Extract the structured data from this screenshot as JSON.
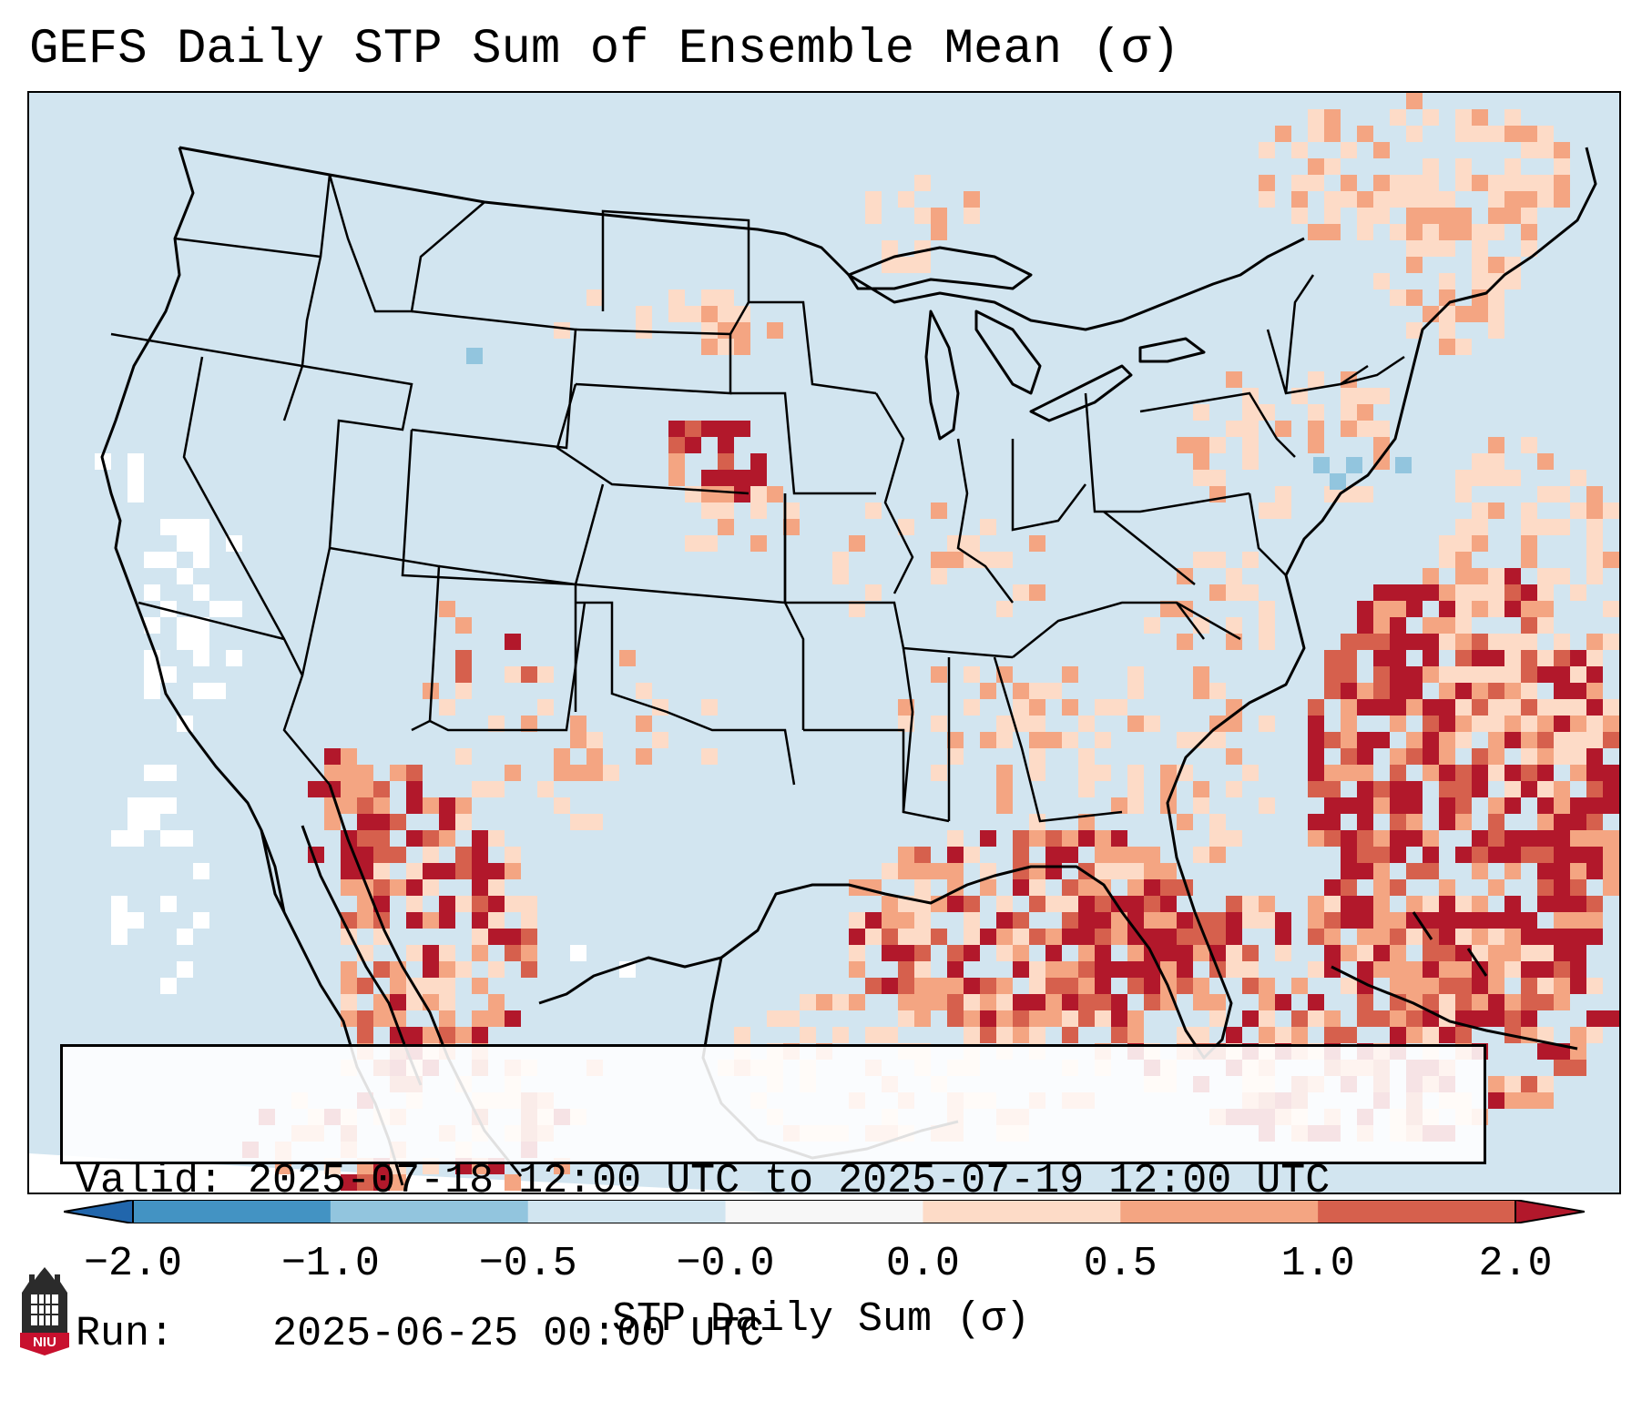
{
  "title": "GEFS Daily STP Sum of Ensemble Mean (σ)",
  "info": {
    "valid_label": "Valid:",
    "valid_value": "2025-07-18 12:00 UTC to 2025-07-19 12:00 UTC",
    "run_label": "Run:",
    "run_value": "2025-06-25 00:00 UTC"
  },
  "colorbar": {
    "label": "STP Daily Sum (σ)",
    "ticks": [
      "−2.0",
      "−1.0",
      "−0.5",
      "−0.0",
      "0.0",
      "0.5",
      "1.0",
      "2.0"
    ],
    "bin_colors": [
      "#4393c3",
      "#92c5de",
      "#d1e5f0",
      "#f7f7f7",
      "#fddbc7",
      "#f4a582",
      "#d6604d"
    ],
    "under_color": "#2166ac",
    "over_color": "#b2182b"
  },
  "map": {
    "region": "Contiguous United States and surrounding areas",
    "field": "GEFS ensemble mean STP daily sum anomaly",
    "background_color": "#d2e5f0",
    "land_outline_color": "#000000"
  },
  "logo": {
    "text": "NIU"
  }
}
